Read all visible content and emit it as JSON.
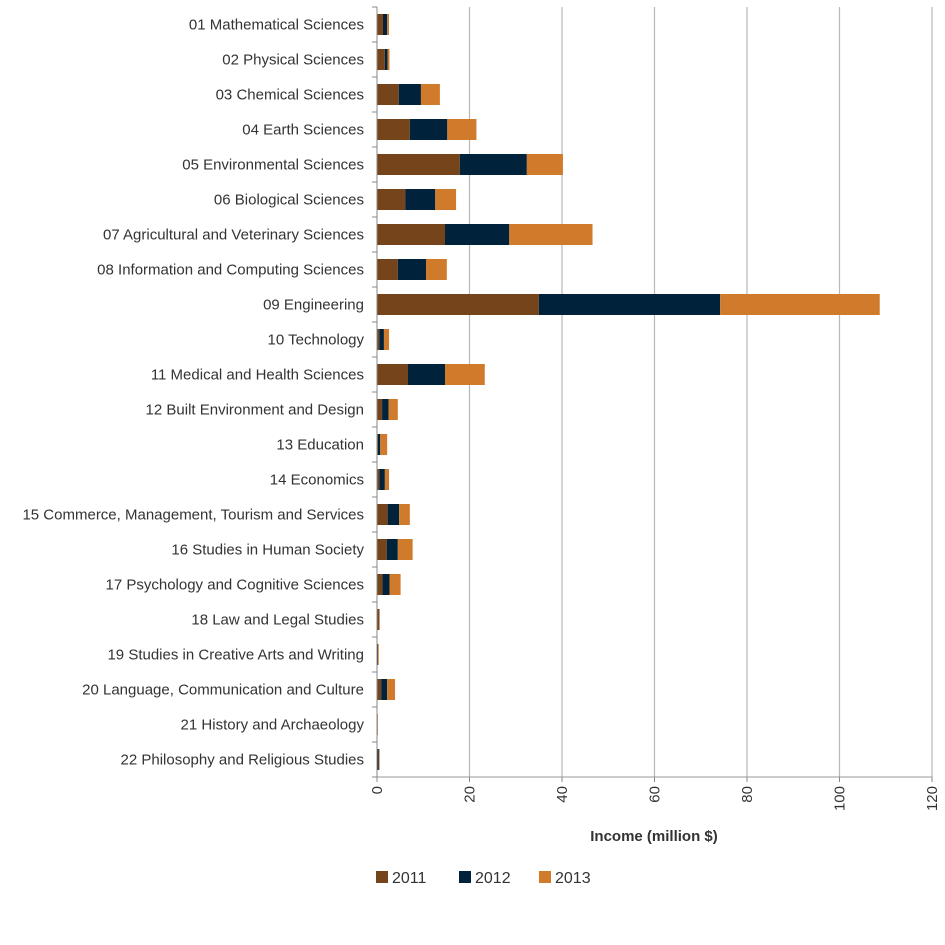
{
  "chart_data": {
    "type": "bar",
    "orientation": "horizontal",
    "stacked": true,
    "title": "",
    "xlabel": "Income (million $)",
    "ylabel": "",
    "xlim": [
      0,
      120
    ],
    "x_ticks": [
      0,
      20,
      40,
      60,
      80,
      100,
      120
    ],
    "grid": "vertical",
    "legend_position": "bottom-left",
    "categories": [
      "01 Mathematical Sciences",
      "02 Physical Sciences",
      "03 Chemical Sciences",
      "04 Earth Sciences",
      "05 Environmental Sciences",
      "06 Biological Sciences",
      "07 Agricultural and Veterinary Sciences",
      "08 Information and Computing Sciences",
      "09 Engineering",
      "10 Technology",
      "11 Medical and Health Sciences",
      "12 Built Environment and Design",
      "13 Education",
      "14 Economics",
      "15 Commerce, Management, Tourism and Services",
      "16 Studies in Human Society",
      "17 Psychology and Cognitive Sciences",
      "18 Law and Legal Studies",
      "19 Studies in Creative Arts and Writing",
      "20 Language, Communication and Culture",
      "21 History and Archaeology",
      "22 Philosophy and Religious Studies"
    ],
    "series": [
      {
        "name": "2011",
        "color": "#75441a",
        "values": [
          1.3,
          1.7,
          4.7,
          7.1,
          17.9,
          6.1,
          14.7,
          4.5,
          35.0,
          0.5,
          6.7,
          1.1,
          0.2,
          0.5,
          2.3,
          2.1,
          1.2,
          0.3,
          0.1,
          0.9,
          0.0,
          0.1
        ]
      },
      {
        "name": "2012",
        "color": "#00223a",
        "values": [
          0.9,
          0.6,
          4.8,
          8.1,
          14.5,
          6.5,
          13.9,
          6.1,
          39.2,
          1.0,
          8.0,
          1.4,
          0.5,
          1.2,
          2.5,
          2.4,
          1.5,
          0.1,
          0.1,
          1.3,
          0.0,
          0.3
        ]
      },
      {
        "name": "2013",
        "color": "#d07b2b",
        "values": [
          0.4,
          0.4,
          4.1,
          6.3,
          7.8,
          4.5,
          18.0,
          4.5,
          34.5,
          1.1,
          8.6,
          2.0,
          1.5,
          0.9,
          2.3,
          3.2,
          2.4,
          0.2,
          0.1,
          1.7,
          0.2,
          0.1
        ]
      }
    ]
  }
}
